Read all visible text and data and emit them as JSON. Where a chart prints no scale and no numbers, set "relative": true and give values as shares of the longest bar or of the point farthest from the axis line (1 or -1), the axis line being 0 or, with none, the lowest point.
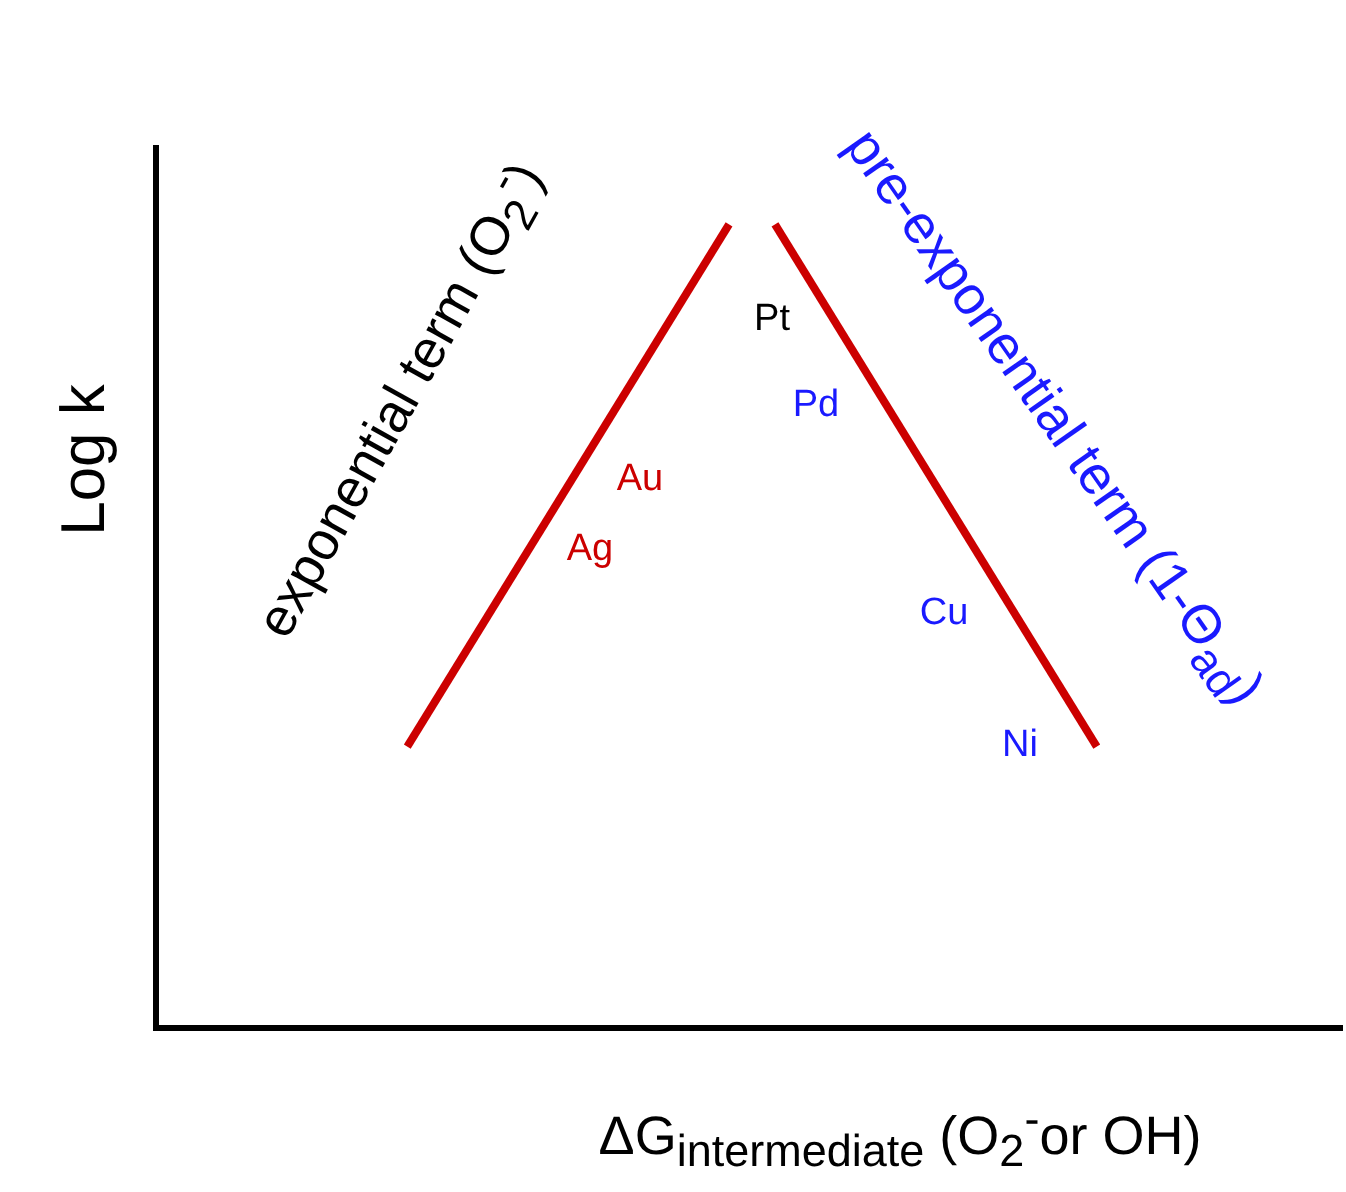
{
  "chart_data": {
    "type": "line",
    "relative": true,
    "xlabel": "ΔG$_{intermediate}$ (O$_{2}$$^{-}$or OH)",
    "ylabel": "Log k",
    "categories": [
      null,
      null,
      null,
      null,
      null,
      null,
      null,
      null,
      null,
      null,
      null,
      null,
      null,
      null,
      null,
      null
    ],
    "series": [
      {
        "color": "#cc0000",
        "values": [
          0.35,
          null,
          null,
          null,
          null,
          null,
          null,
          1,
          null,
          null,
          null,
          null,
          null,
          null,
          null,
          null
        ]
      },
      {
        "color": "#cc0000",
        "values": [
          null,
          null,
          null,
          null,
          null,
          null,
          null,
          null,
          1,
          null,
          null,
          null,
          null,
          null,
          null,
          0.35
        ]
      }
    ],
    "annotations": [
      "exponential term (O$_{2}$$^{-}$)",
      "pre-exponential term (1-Θ$_{ad}$)",
      "Pt",
      "Pd",
      "Au",
      "Ag",
      "Cu",
      "Ni"
    ],
    "legend": false,
    "grid": false
  }
}
